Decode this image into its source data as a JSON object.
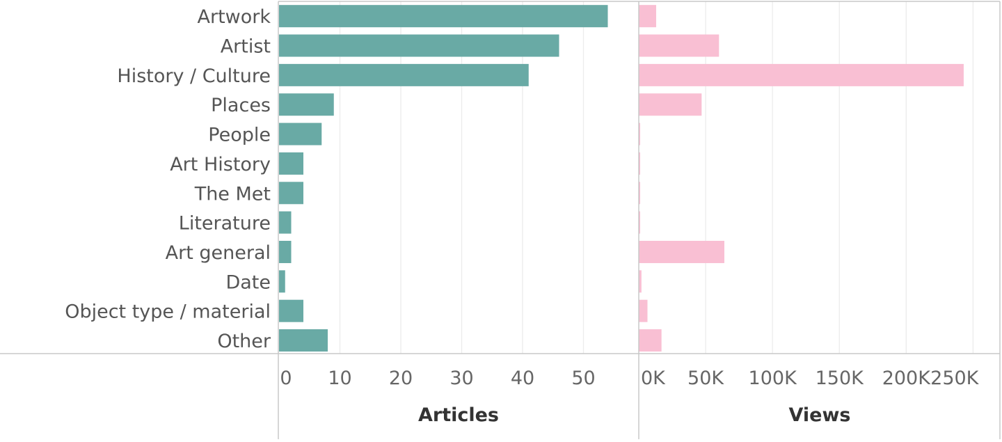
{
  "chart_data": [
    {
      "type": "bar",
      "orientation": "horizontal",
      "categories": [
        "Artwork",
        "Artist",
        "History / Culture",
        "Places",
        "People",
        "Art History",
        "The Met",
        "Literature",
        "Art general",
        "Date",
        "Object type / material",
        "Other"
      ],
      "series": [
        {
          "values": [
            54,
            46,
            41,
            9,
            7,
            4,
            4,
            2,
            2,
            1,
            4,
            8
          ],
          "color": "#69aaa5"
        }
      ],
      "xlabel": "Articles",
      "xlim": [
        0,
        56
      ],
      "xticks": [
        0,
        10,
        20,
        30,
        40,
        50
      ],
      "xtick_labels": [
        "0",
        "10",
        "20",
        "30",
        "40",
        "50"
      ],
      "grid": true
    },
    {
      "type": "bar",
      "orientation": "horizontal",
      "categories": [
        "Artwork",
        "Artist",
        "History / Culture",
        "Places",
        "People",
        "Art History",
        "The Met",
        "Literature",
        "Art general",
        "Date",
        "Object type / material",
        "Other"
      ],
      "series": [
        {
          "values": [
            13000,
            60000,
            243000,
            47000,
            700,
            700,
            700,
            700,
            64000,
            2000,
            6500,
            17000
          ],
          "color": "#f9bfd3"
        }
      ],
      "xlabel": "Views",
      "xlim": [
        0,
        255000
      ],
      "xticks": [
        0,
        50000,
        100000,
        150000,
        200000,
        250000
      ],
      "xtick_labels": [
        "0K",
        "50K",
        "100K",
        "150K",
        "200K",
        "250K"
      ],
      "grid": true
    }
  ]
}
